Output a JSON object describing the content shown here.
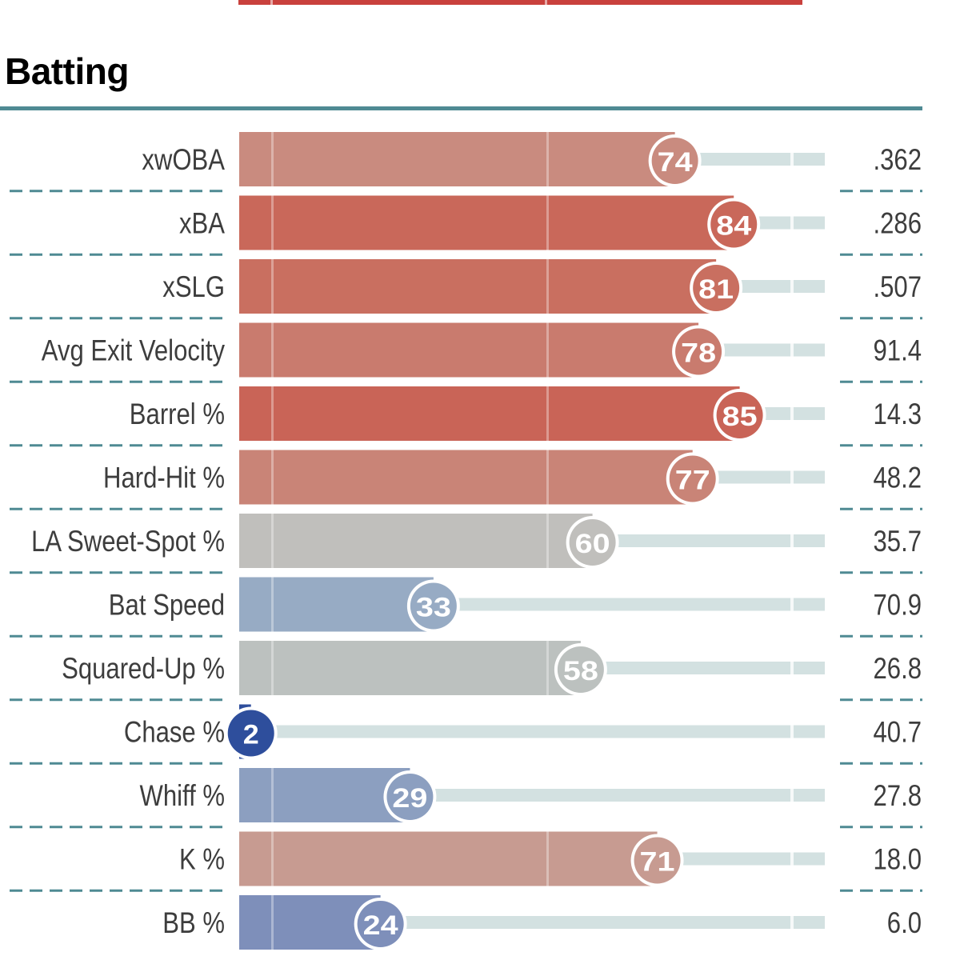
{
  "section": {
    "title": "Batting"
  },
  "colors": {
    "rule": "#4f8a93",
    "track": "#d3e1e1",
    "label_text": "#3d3d3d",
    "top_bar": "#c9413d"
  },
  "chart_data": {
    "type": "bar",
    "orientation": "horizontal",
    "title": "Batting",
    "xlim": [
      0,
      100
    ],
    "categories": [
      "xwOBA",
      "xBA",
      "xSLG",
      "Avg Exit Velocity",
      "Barrel %",
      "Hard-Hit %",
      "LA Sweet-Spot %",
      "Bat Speed",
      "Squared-Up %",
      "Chase %",
      "Whiff %",
      "K %",
      "BB %"
    ],
    "series": [
      {
        "values": [
          74,
          84,
          81,
          78,
          85,
          77,
          60,
          33,
          58,
          2,
          29,
          71,
          24
        ]
      }
    ],
    "stat_values": [
      ".362",
      ".286",
      ".507",
      "91.4",
      "14.3",
      "48.2",
      "35.7",
      "70.9",
      "26.8",
      "40.7",
      "27.8",
      "18.0",
      "6.0"
    ],
    "bar_colors": [
      "#c98b7f",
      "#c9685a",
      "#c96f60",
      "#c97b6e",
      "#c96457",
      "#c98477",
      "#c0bfbc",
      "#97abc4",
      "#bcc1bf",
      "#2e4e9c",
      "#8c9fc0",
      "#c79b91",
      "#7e8fba"
    ]
  }
}
